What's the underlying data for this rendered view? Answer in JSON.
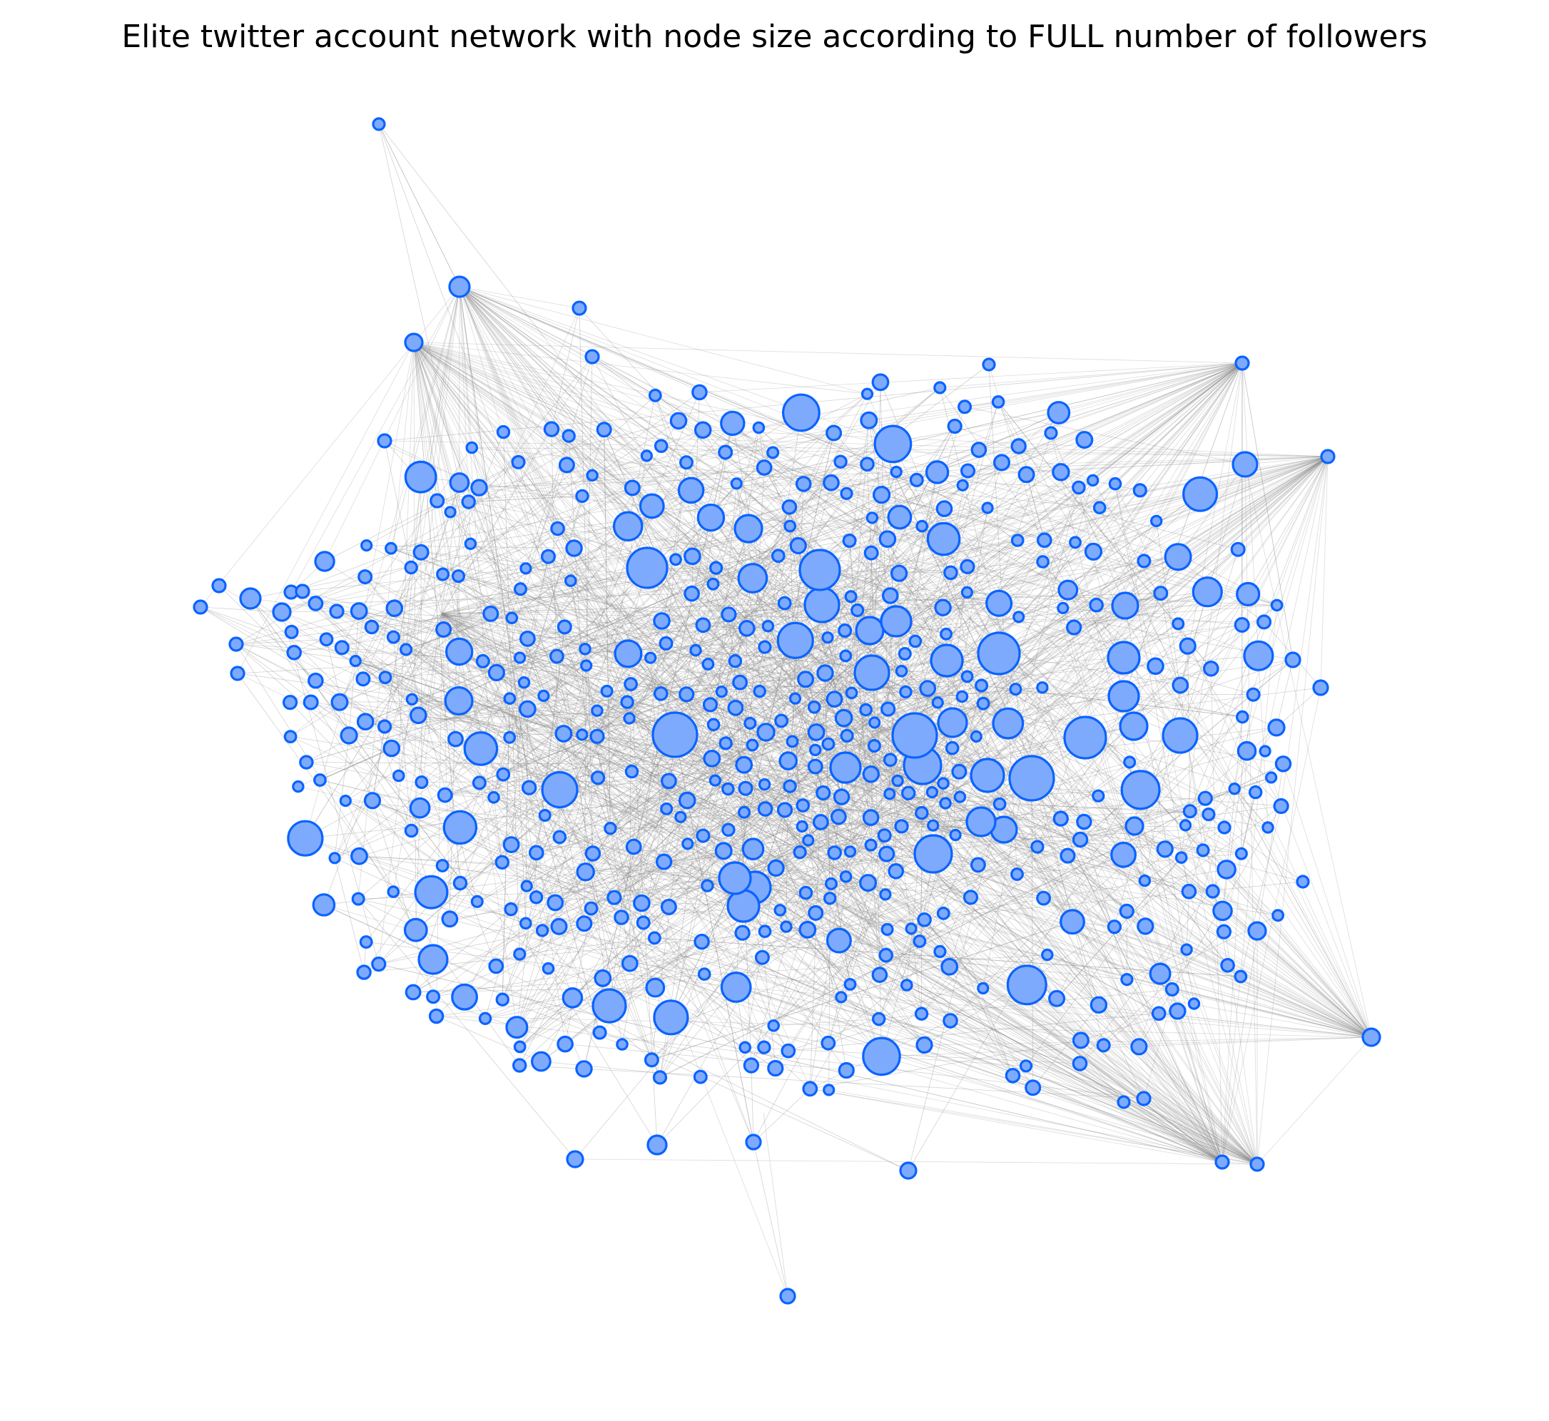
{
  "title": "Elite twitter account network with node size according to FULL number of followers",
  "style": {
    "node_fill": "#7eaafe",
    "node_stroke": "#0a63ff",
    "edge_color": "#8c8c8c"
  }
}
